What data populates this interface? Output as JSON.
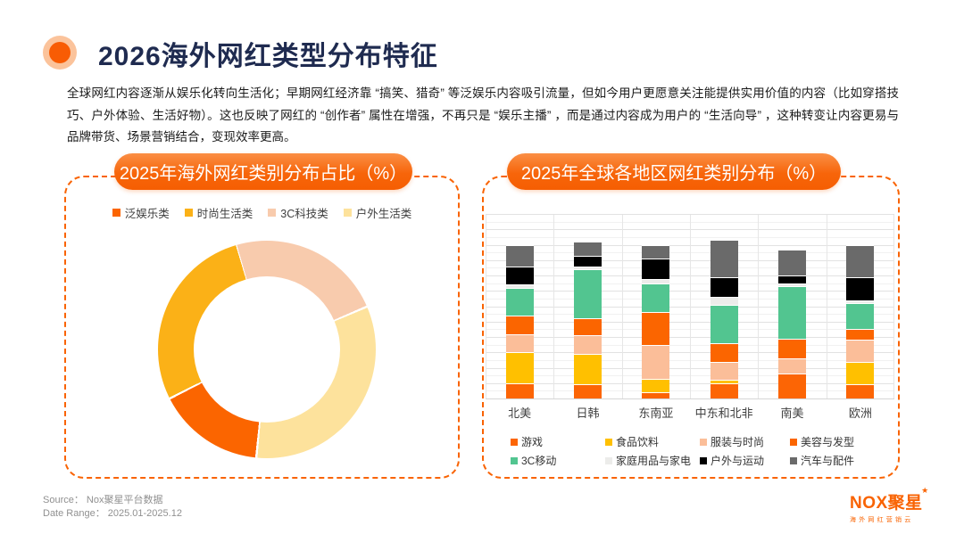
{
  "page": {
    "title": "2026海外网红类型分布特征",
    "intro": "全球网红内容逐渐从娱乐化转向生活化；早期网红经济靠 “搞笑、猎奇” 等泛娱乐内容吸引流量，但如今用户更愿意关注能提供实用价值的内容（比如穿搭技巧、户外体验、生活好物）。这也反映了网红的 “创作者” 属性在增强，不再只是 “娱乐主播” ，而是通过内容成为用户的 “生活向导” ，这种转变让内容更易与品牌带货、场景营销结合，变现效率更高。",
    "source_label": "Source：  Nox聚星平台数据",
    "date_range_label": "Date Range：  2025.01-2025.12",
    "logo": {
      "brand": "NOX聚星",
      "star": "★",
      "tagline": "海外网红营销云"
    },
    "accent_color": "#F96302",
    "title_color": "#1F2B50"
  },
  "chart_data": [
    {
      "type": "pie",
      "donut": true,
      "title": "2025年海外网红类别分布占比（%）",
      "legend_position": "top",
      "start_angle_deg": 344,
      "draw_order": [
        2,
        3,
        0,
        1
      ],
      "segments": [
        {
          "label": "泛娱乐类",
          "value": 16,
          "color": "#FB6500"
        },
        {
          "label": "时尚生活类",
          "value": 28,
          "color": "#FBB117"
        },
        {
          "label": "3C科技类",
          "value": 23,
          "color": "#F8CBAD"
        },
        {
          "label": "户外生活类",
          "value": 33,
          "color": "#FDE29C"
        }
      ],
      "note": "values in % estimated from arc angles"
    },
    {
      "type": "bar",
      "stacked": true,
      "title": "2025年全球各地区网红类别分布（%）",
      "categories": [
        "北美",
        "日韩",
        "东南亚",
        "中东和北非",
        "南美",
        "欧洲"
      ],
      "series": [
        {
          "name": "游戏",
          "color": "#FC6505",
          "values": [
            10,
            9,
            4,
            10,
            16,
            9
          ]
        },
        {
          "name": "食品饮料",
          "color": "#FFC000",
          "values": [
            20,
            20,
            9,
            2,
            0,
            15
          ]
        },
        {
          "name": "服装与时尚",
          "color": "#FBBE99",
          "values": [
            12,
            12,
            22,
            12,
            10,
            14
          ]
        },
        {
          "name": "美容与发型",
          "color": "#FB6500",
          "values": [
            12,
            11,
            21,
            12,
            13,
            7
          ]
        },
        {
          "name": "3C移动",
          "color": "#52C590",
          "values": [
            18,
            32,
            19,
            25,
            34,
            17
          ]
        },
        {
          "name": "家庭用品与家电",
          "color": "#ECECEA",
          "values": [
            2,
            2,
            3,
            5,
            2,
            2
          ]
        },
        {
          "name": "户外与运动",
          "color": "#000000",
          "values": [
            12,
            7,
            13,
            13,
            5,
            15
          ]
        },
        {
          "name": "汽车与配件",
          "color": "#6A6A6A",
          "values": [
            14,
            9,
            9,
            24,
            17,
            21
          ]
        }
      ],
      "ylim": [
        0,
        120
      ],
      "grid": true,
      "legend_position": "bottom",
      "note": "values in % estimated from gridlines (10 per major line)"
    }
  ]
}
